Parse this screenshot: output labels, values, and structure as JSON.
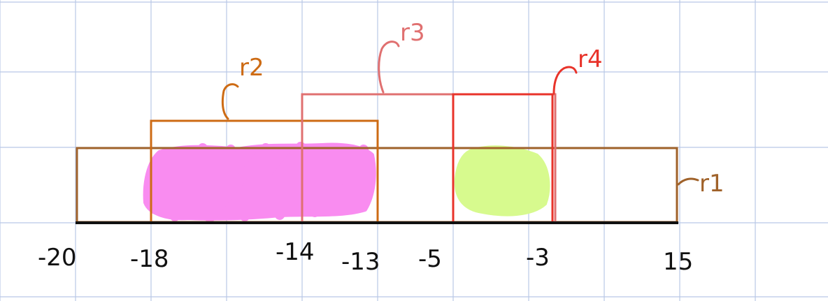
{
  "colors": {
    "grid": "#b9c7e6",
    "axis": "#111111",
    "r1": "#a0622a",
    "r2": "#cd6b14",
    "r3": "#e07070",
    "r4": "#e8332a",
    "pink_fill": "#f98cf0",
    "green_fill": "#d7fa8e"
  },
  "axis_ticks": [
    "-20",
    "-18",
    "-14",
    "-13",
    "-5",
    "-3",
    "15"
  ],
  "ranges": [
    {
      "id": "r1",
      "label": "r1",
      "from": -20,
      "to": 15
    },
    {
      "id": "r2",
      "label": "r2",
      "from": -18,
      "to": -13
    },
    {
      "id": "r3",
      "label": "r3",
      "from": -14,
      "to": -3
    },
    {
      "id": "r4",
      "label": "r4",
      "from": -5,
      "to": -3
    }
  ],
  "highlights": [
    {
      "id": "overlap-a",
      "from": -18,
      "to": -13,
      "color": "pink"
    },
    {
      "id": "overlap-b",
      "from": -5,
      "to": -3,
      "color": "green"
    }
  ],
  "labels": {
    "r1": "r1",
    "r2": "r2",
    "r3": "r3",
    "r4": "r4"
  }
}
